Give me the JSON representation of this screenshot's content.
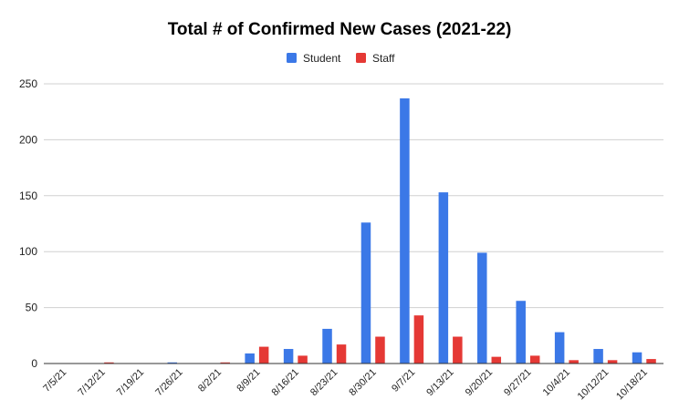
{
  "chart_data": {
    "type": "bar",
    "title": "Total # of Confirmed New Cases (2021-22)",
    "categories": [
      "7/5/21",
      "7/12/21",
      "7/19/21",
      "7/26/21",
      "8/2/21",
      "8/9/21",
      "8/16/21",
      "8/23/21",
      "8/30/21",
      "9/7/21",
      "9/13/21",
      "9/20/21",
      "9/27/21",
      "10/4/21",
      "10/12/21",
      "10/18/21"
    ],
    "series": [
      {
        "name": "Student",
        "color": "#3b78e7",
        "values": [
          0,
          0,
          0,
          1,
          0,
          9,
          13,
          31,
          126,
          237,
          153,
          99,
          56,
          28,
          13,
          10
        ]
      },
      {
        "name": "Staff",
        "color": "#e53935",
        "values": [
          0,
          1,
          0,
          0,
          1,
          15,
          7,
          17,
          24,
          43,
          24,
          6,
          7,
          3,
          3,
          4
        ]
      }
    ],
    "ylim": [
      0,
      250
    ],
    "yticks": [
      0,
      50,
      100,
      150,
      200,
      250
    ],
    "grid": true,
    "legend": "top-center"
  }
}
